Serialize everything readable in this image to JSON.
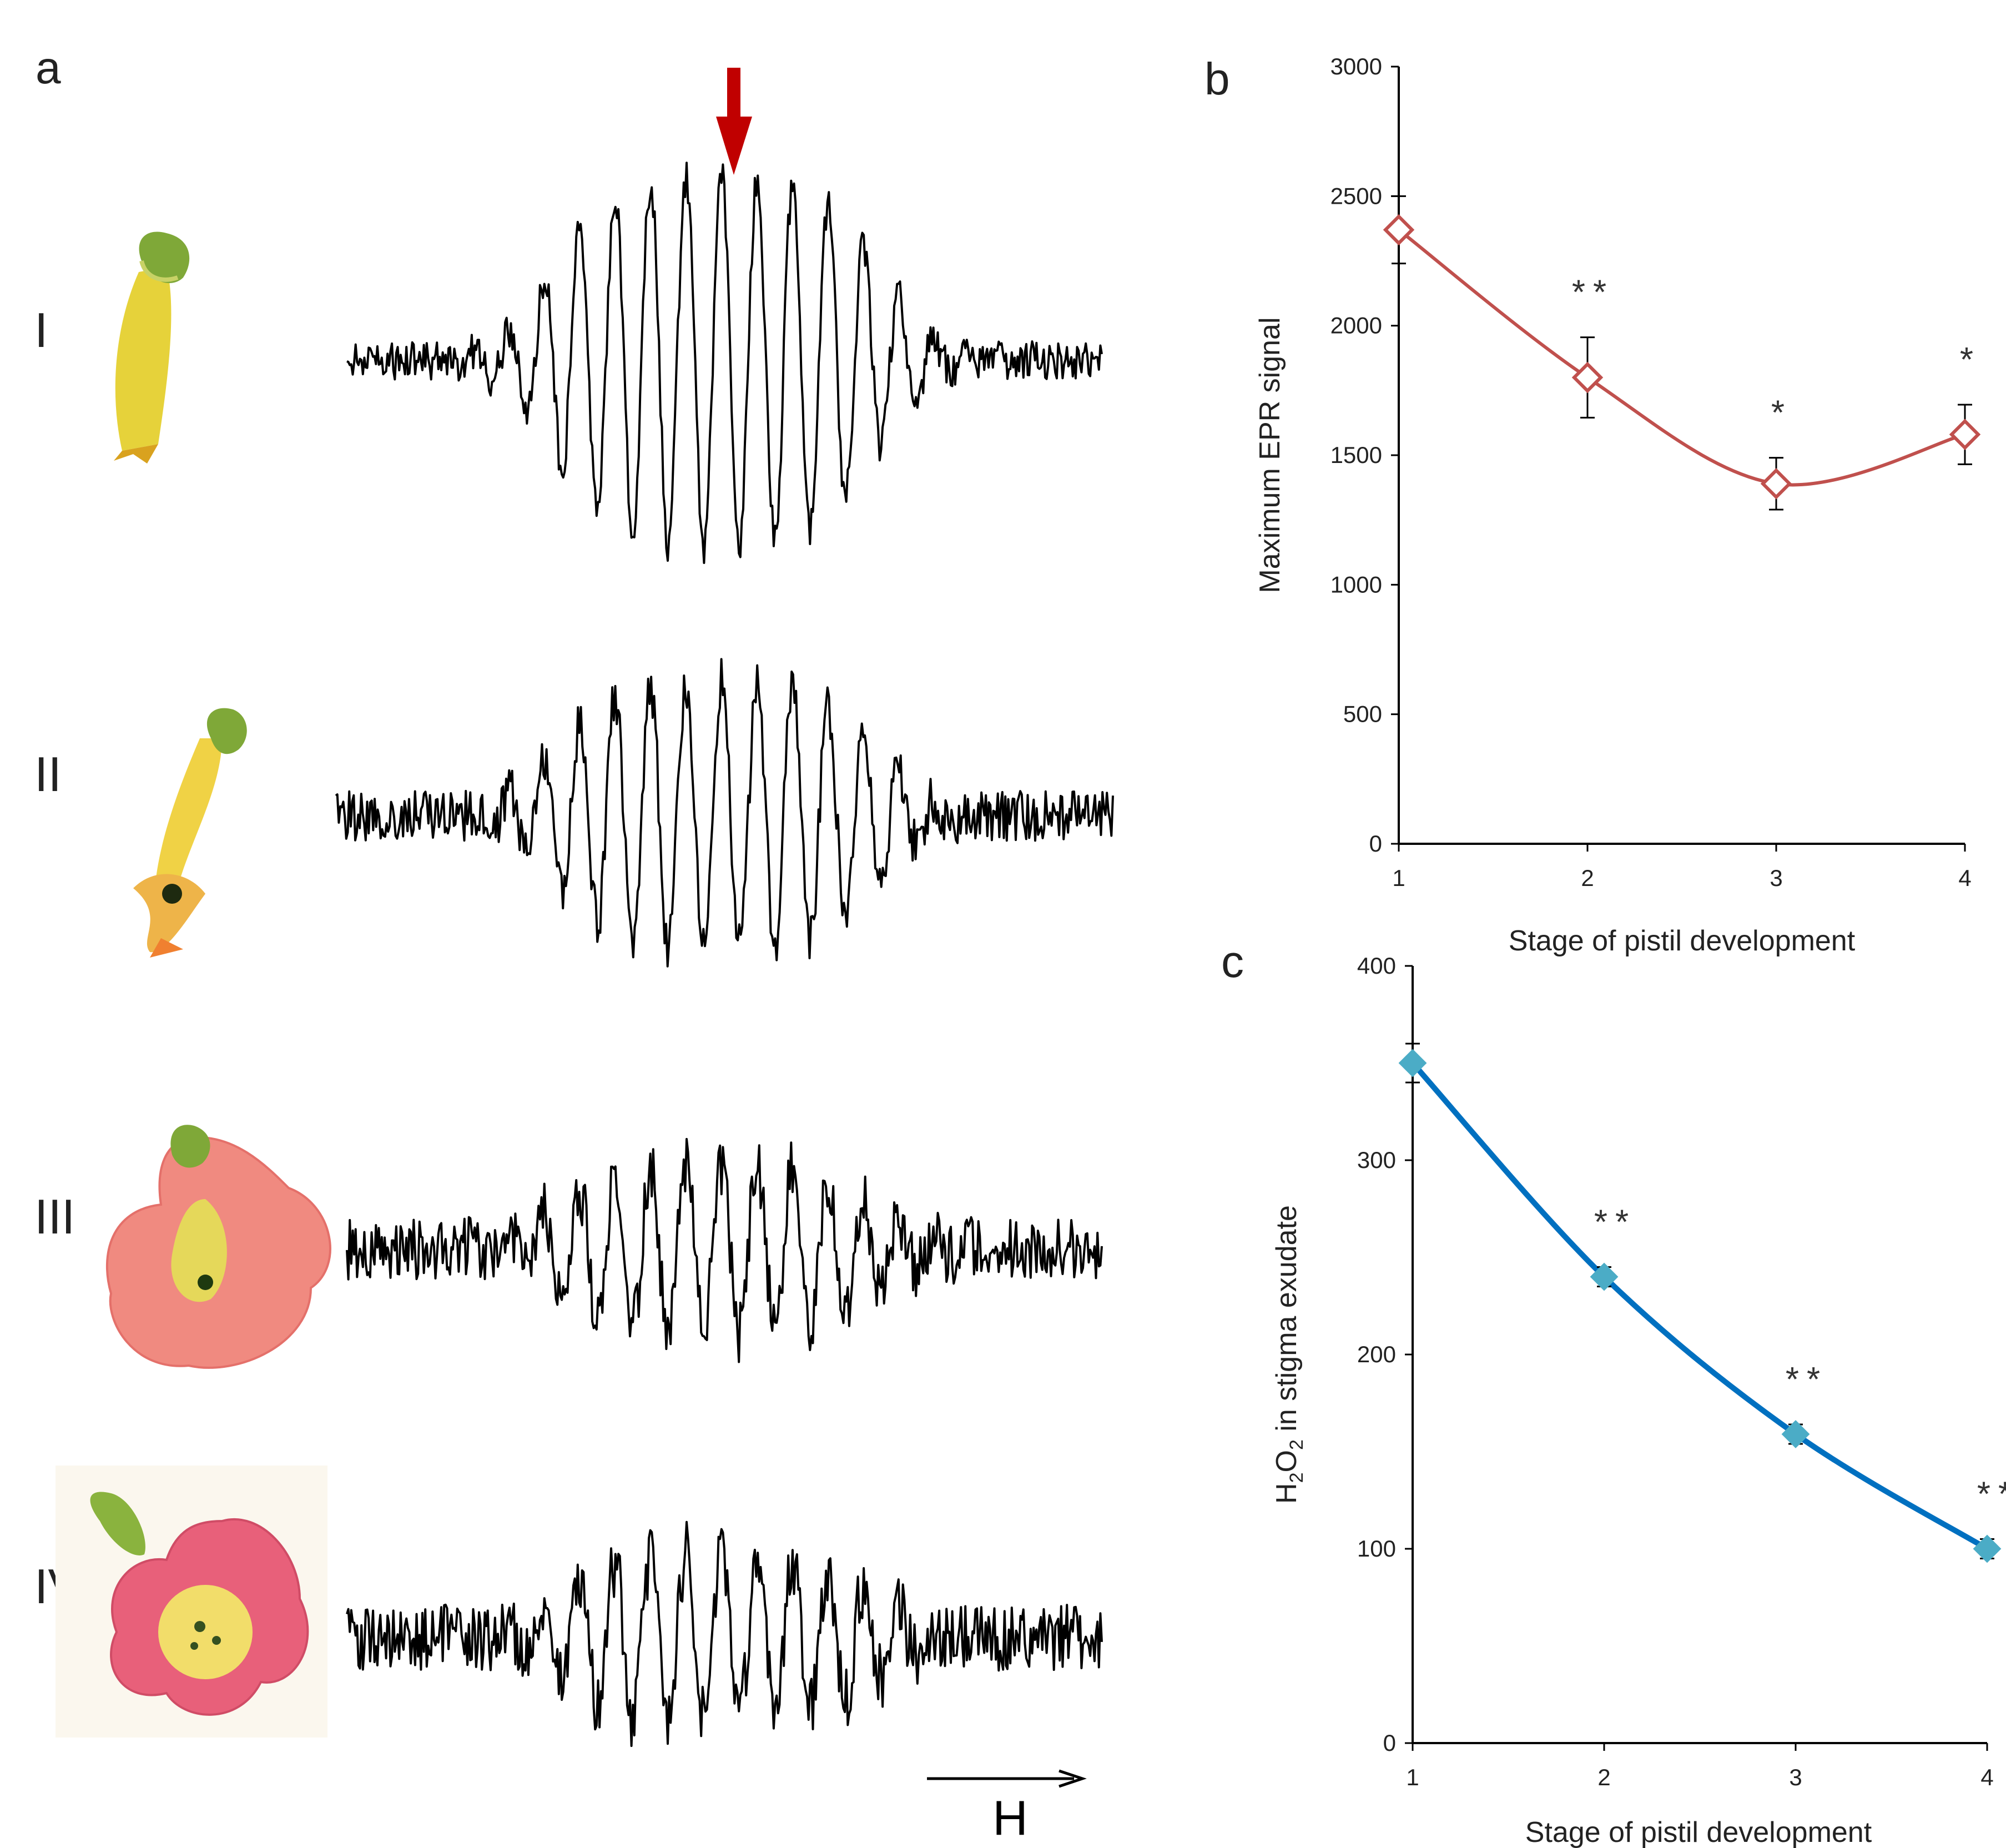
{
  "panels": {
    "a": {
      "letter": "a",
      "rows": [
        {
          "stage": "I",
          "flower": "yellow-green tubular bud"
        },
        {
          "stage": "II",
          "flower": "yellow bud opening"
        },
        {
          "stage": "III",
          "flower": "pink flower"
        },
        {
          "stage": "IV",
          "flower": "pink flower, fully open"
        }
      ],
      "field_label": "H",
      "arrow_color": "#c00000"
    },
    "b": {
      "letter": "b"
    },
    "c": {
      "letter": "c"
    }
  },
  "chart_data": [
    {
      "id": "b",
      "type": "line",
      "title": "",
      "xlabel": "Stage of pistil development",
      "ylabel": "Maximum EPR signal",
      "x": [
        1,
        2,
        3,
        4
      ],
      "values": [
        2370,
        1800,
        1390,
        1580
      ],
      "errors": [
        130,
        155,
        100,
        115
      ],
      "significance": [
        "",
        "**",
        "*",
        "*"
      ],
      "xlim": [
        1,
        4
      ],
      "ylim": [
        0,
        3000
      ],
      "yticks": [
        0,
        500,
        1000,
        1500,
        2000,
        2500,
        3000
      ],
      "xticks": [
        1,
        2,
        3,
        4
      ],
      "color": "#c0504d",
      "marker": "open-diamond"
    },
    {
      "id": "c",
      "type": "line",
      "title": "",
      "xlabel": "Stage of pistil development",
      "ylabel_parts": [
        "H",
        "2",
        "O",
        "2",
        " in stigma exudate"
      ],
      "x": [
        1,
        2,
        3,
        4
      ],
      "values": [
        350,
        240,
        159,
        100
      ],
      "errors": [
        10,
        5,
        5,
        5
      ],
      "significance": [
        "",
        "**",
        "**",
        "**"
      ],
      "xlim": [
        1,
        4
      ],
      "ylim": [
        0,
        400
      ],
      "yticks": [
        0,
        100,
        200,
        300,
        400
      ],
      "xticks": [
        1,
        2,
        3,
        4
      ],
      "color": "#0070c0",
      "marker_color": "#4bacc6",
      "marker": "filled-diamond"
    }
  ]
}
